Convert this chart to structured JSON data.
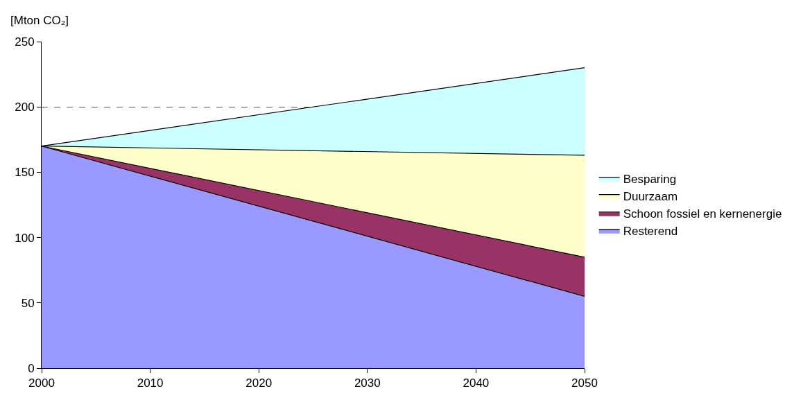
{
  "chart_data": {
    "type": "area",
    "stacked": true,
    "ylabel": "[Mton CO₂]",
    "x": [
      2000,
      2050
    ],
    "xlim": [
      2000,
      2050
    ],
    "xticks": [
      2000,
      2010,
      2020,
      2030,
      2040,
      2050
    ],
    "ylim": [
      0,
      250
    ],
    "yticks": [
      0,
      50,
      100,
      150,
      200,
      250
    ],
    "grid": "y",
    "legend": "right",
    "series": [
      {
        "name": "Resterend",
        "color": "#9999ff",
        "values": [
          170,
          55
        ]
      },
      {
        "name": "Schoon fossiel en kernenergie",
        "color": "#993366",
        "values": [
          0,
          30
        ]
      },
      {
        "name": "Duurzaam",
        "color": "#ffffcc",
        "values": [
          0,
          78
        ]
      },
      {
        "name": "Besparing",
        "color": "#ccffff",
        "values": [
          0,
          67
        ]
      }
    ]
  }
}
